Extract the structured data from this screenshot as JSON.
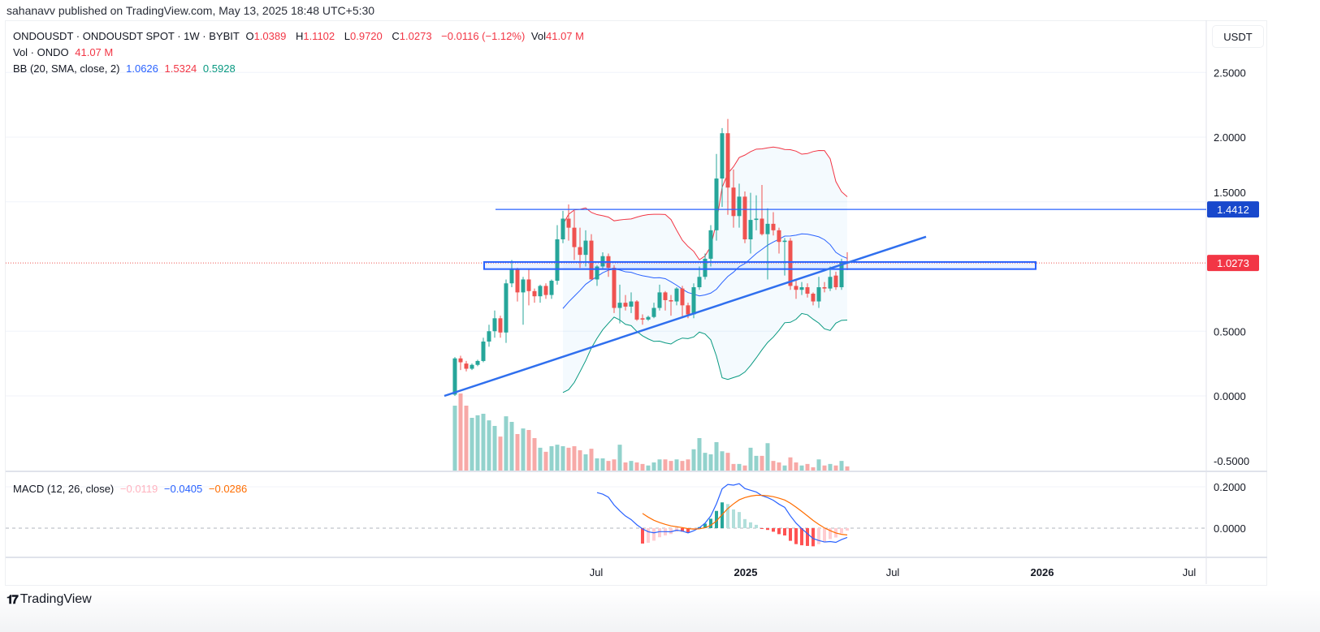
{
  "header": {
    "publisher": "sahanavv published on TradingView.com, May 13, 2025 18:48 UTC+5:30"
  },
  "legend": {
    "symbol": "ONDOUSDT · ONDOUSDT SPOT · 1W · BYBIT",
    "o_label": "O",
    "o": "1.0389",
    "h_label": "H",
    "h": "1.1102",
    "l_label": "L",
    "l": "0.9720",
    "c_label": "C",
    "c": "1.0273",
    "change": "−0.0116 (−1.12%)",
    "vol_label": "Vol",
    "vol": "41.07 M",
    "volume_title": "Vol · ONDO",
    "volume_value": "41.07 M",
    "bb_title": "BB (20, SMA, close, 2)",
    "bb_basis": "1.0626",
    "bb_upper": "1.5324",
    "bb_lower": "0.5928",
    "macd_title": "MACD (12, 26, close)",
    "macd_hist": "−0.0119",
    "macd_line": "−0.0405",
    "macd_signal": "−0.0286"
  },
  "price_axis": {
    "currency": "USDT",
    "ticks": [
      "2.5000",
      "2.0000",
      "1.5000",
      "0.5000",
      "0.0000",
      "-0.5000"
    ],
    "tick_values": [
      2.5,
      2.0,
      1.5,
      0.5,
      0.0,
      -0.5
    ],
    "hline_label": "1.4412",
    "last_price_label": "1.0273"
  },
  "macd_axis": {
    "ticks": [
      "0.2000",
      "0.0000"
    ],
    "tick_values": [
      0.2,
      0.0
    ]
  },
  "time_axis": {
    "labels": [
      "Jul",
      "2025",
      "Jul",
      "2026",
      "Jul"
    ],
    "dates": [
      "2024-07-01",
      "2025-01-01",
      "2025-07-01",
      "2026-01-01",
      "2026-07-01"
    ],
    "bold": [
      false,
      true,
      false,
      true,
      false
    ]
  },
  "footer": {
    "brand": "TradingView"
  },
  "colors": {
    "up": "#26a69a",
    "down": "#ef5350",
    "bb_basis": "#2962ff",
    "bb_upper": "#f23645",
    "bb_lower": "#089981",
    "drawing": "#2962ff",
    "macd": "#2962ff",
    "signal": "#ff6d00",
    "hline_badge": "#1848cc",
    "last_badge": "#f23645"
  },
  "chart_data": {
    "type": "candlestick",
    "interval": "1W",
    "ohlc": [
      [
        0.01,
        0.3,
        0.0,
        0.29
      ],
      [
        0.29,
        0.31,
        0.2,
        0.26
      ],
      [
        0.25,
        0.27,
        0.19,
        0.21
      ],
      [
        0.21,
        0.25,
        0.2,
        0.24
      ],
      [
        0.24,
        0.28,
        0.23,
        0.27
      ],
      [
        0.27,
        0.45,
        0.26,
        0.42
      ],
      [
        0.42,
        0.55,
        0.38,
        0.5
      ],
      [
        0.5,
        0.66,
        0.45,
        0.6
      ],
      [
        0.6,
        0.62,
        0.45,
        0.49
      ],
      [
        0.49,
        0.9,
        0.41,
        0.87
      ],
      [
        0.87,
        1.05,
        0.84,
        0.98
      ],
      [
        0.98,
        0.99,
        0.73,
        0.8
      ],
      [
        0.8,
        0.92,
        0.55,
        0.9
      ],
      [
        0.9,
        0.98,
        0.7,
        0.81
      ],
      [
        0.81,
        0.83,
        0.72,
        0.77
      ],
      [
        0.77,
        0.86,
        0.72,
        0.85
      ],
      [
        0.85,
        0.87,
        0.75,
        0.78
      ],
      [
        0.78,
        0.9,
        0.75,
        0.89
      ],
      [
        0.89,
        1.32,
        0.86,
        1.21
      ],
      [
        1.21,
        1.43,
        1.18,
        1.37
      ],
      [
        1.37,
        1.48,
        1.2,
        1.3
      ],
      [
        1.3,
        1.43,
        1.05,
        1.15
      ],
      [
        1.15,
        1.3,
        0.99,
        1.09
      ],
      [
        1.09,
        1.28,
        1.0,
        1.2
      ],
      [
        1.2,
        1.25,
        0.9,
        0.9
      ],
      [
        0.9,
        1.01,
        0.85,
        1.0
      ],
      [
        1.0,
        1.11,
        0.98,
        1.08
      ],
      [
        1.08,
        1.1,
        0.92,
        0.99
      ],
      [
        0.99,
        1.01,
        0.64,
        0.68
      ],
      [
        0.68,
        0.86,
        0.56,
        0.72
      ],
      [
        0.72,
        0.78,
        0.66,
        0.69
      ],
      [
        0.69,
        0.8,
        0.64,
        0.73
      ],
      [
        0.73,
        0.74,
        0.58,
        0.59
      ],
      [
        0.6,
        0.63,
        0.55,
        0.59
      ],
      [
        0.59,
        0.62,
        0.58,
        0.61
      ],
      [
        0.61,
        0.72,
        0.6,
        0.68
      ],
      [
        0.68,
        0.86,
        0.66,
        0.8
      ],
      [
        0.8,
        0.81,
        0.66,
        0.74
      ],
      [
        0.74,
        0.78,
        0.62,
        0.73
      ],
      [
        0.73,
        0.84,
        0.7,
        0.83
      ],
      [
        0.83,
        0.85,
        0.6,
        0.7
      ],
      [
        0.7,
        0.72,
        0.6,
        0.63
      ],
      [
        0.63,
        0.87,
        0.6,
        0.84
      ],
      [
        0.84,
        1.0,
        0.82,
        0.92
      ],
      [
        0.92,
        1.1,
        0.9,
        1.06
      ],
      [
        1.06,
        1.32,
        1.0,
        1.28
      ],
      [
        1.28,
        1.87,
        1.2,
        1.68
      ],
      [
        1.68,
        2.07,
        1.46,
        2.03
      ],
      [
        2.03,
        2.14,
        1.4,
        1.61
      ],
      [
        1.61,
        1.75,
        1.3,
        1.39
      ],
      [
        1.39,
        1.64,
        1.3,
        1.54
      ],
      [
        1.54,
        1.58,
        1.18,
        1.21
      ],
      [
        1.21,
        1.57,
        1.1,
        1.36
      ],
      [
        1.36,
        1.55,
        1.28,
        1.37
      ],
      [
        1.37,
        1.63,
        1.24,
        1.25
      ],
      [
        1.25,
        1.45,
        0.9,
        1.33
      ],
      [
        1.33,
        1.42,
        1.24,
        1.28
      ],
      [
        1.28,
        1.3,
        1.1,
        1.19
      ],
      [
        1.19,
        1.22,
        0.93,
        1.2
      ],
      [
        1.2,
        1.22,
        0.82,
        0.85
      ],
      [
        0.85,
        0.9,
        0.75,
        0.82
      ],
      [
        0.82,
        0.88,
        0.78,
        0.84
      ],
      [
        0.84,
        0.87,
        0.76,
        0.79
      ],
      [
        0.79,
        0.8,
        0.7,
        0.73
      ],
      [
        0.73,
        0.92,
        0.68,
        0.84
      ],
      [
        0.84,
        0.88,
        0.8,
        0.83
      ],
      [
        0.83,
        1.0,
        0.81,
        0.92
      ],
      [
        0.93,
        0.96,
        0.82,
        0.84
      ],
      [
        0.84,
        1.06,
        0.82,
        1.04
      ],
      [
        1.0389,
        1.1102,
        0.972,
        1.0273
      ]
    ],
    "volume_m": [
      640,
      760,
      640,
      520,
      545,
      560,
      495,
      440,
      335,
      535,
      480,
      360,
      415,
      400,
      320,
      225,
      185,
      240,
      255,
      240,
      225,
      240,
      200,
      160,
      215,
      120,
      120,
      95,
      110,
      255,
      80,
      95,
      80,
      65,
      50,
      80,
      110,
      110,
      95,
      110,
      95,
      110,
      210,
      320,
      175,
      160,
      280,
      190,
      175,
      65,
      65,
      50,
      225,
      145,
      145,
      270,
      95,
      80,
      50,
      130,
      80,
      50,
      65,
      32,
      110,
      50,
      65,
      50,
      95,
      41.07
    ],
    "indicators": {
      "bb": {
        "length": 20,
        "mult": 2,
        "source": "close"
      },
      "macd": {
        "fast": 12,
        "slow": 26,
        "signal": 9,
        "source": "close"
      }
    },
    "drawings": {
      "horizontal_line": {
        "price": 1.4412,
        "from": "2024-02-28"
      },
      "rectangle": {
        "from": "2024-02-14",
        "to": "2025-12-24",
        "top": 1.035,
        "bottom": 0.98
      },
      "trendline": {
        "from": [
          "2023-12-27",
          0.0
        ],
        "to": [
          "2025-08-11",
          1.23
        ]
      },
      "last_price_line": 1.0273
    },
    "ylim": [
      -0.55,
      2.85
    ],
    "macd_ylim": [
      -0.15,
      0.25
    ]
  }
}
